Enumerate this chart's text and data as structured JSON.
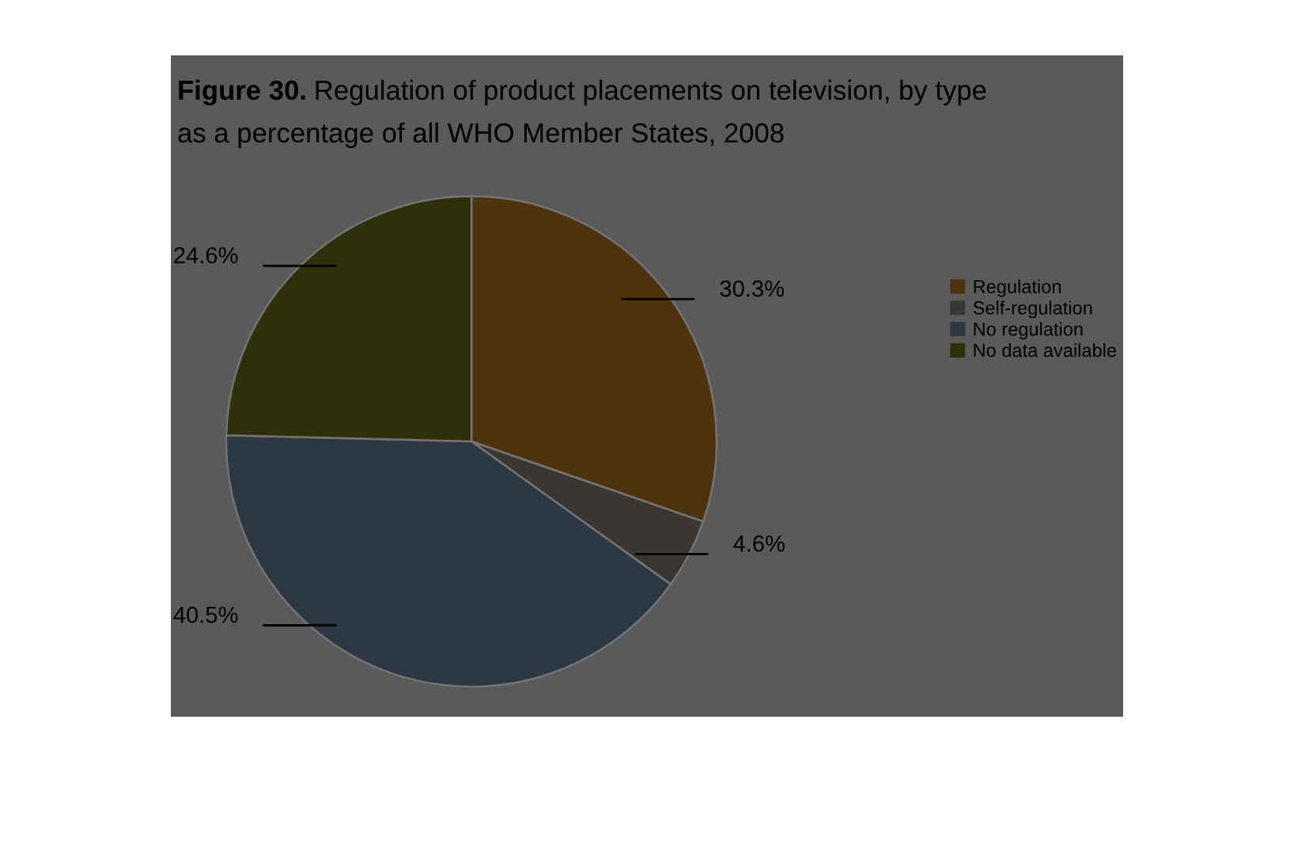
{
  "chart_data": {
    "type": "pie",
    "title": "Figure 30. Regulation of product placements on television, by type",
    "subtitle": "as a percentage of all WHO Member States, 2008",
    "categories": [
      "Regulation",
      "Self-regulation",
      "No regulation",
      "No data available"
    ],
    "values": [
      30.3,
      4.6,
      40.5,
      24.6
    ],
    "colors": [
      "#4f320e",
      "#3a3631",
      "#2c3844",
      "#2d3009"
    ],
    "value_labels": [
      "30.3%",
      "4.6%",
      "40.5%",
      "24.6%"
    ],
    "legend": "right"
  }
}
